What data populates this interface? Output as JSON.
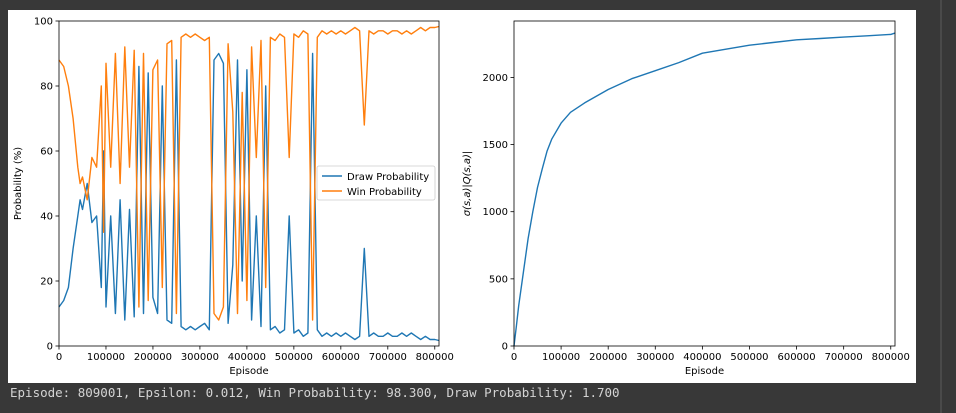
{
  "output": {
    "status_line": "Episode: 809001, Epsilon: 0.012, Win Probability: 98.300, Draw Probability: 1.700"
  },
  "colors": {
    "draw": "#1f77b4",
    "win": "#ff7f0e",
    "output_background": "#383838",
    "output_text": "#d4d4d4"
  },
  "chart_data": [
    {
      "type": "line",
      "title": "",
      "xlabel": "Episode",
      "ylabel": "Probability (%)",
      "xlim": [
        0,
        809001
      ],
      "ylim": [
        0,
        100
      ],
      "xticks": [
        0,
        100000,
        200000,
        300000,
        400000,
        500000,
        600000,
        700000,
        800000
      ],
      "xtick_labels": [
        "0",
        "100000",
        "200000",
        "300000",
        "400000",
        "500000",
        "600000",
        "700000",
        "800000"
      ],
      "yticks": [
        0,
        20,
        40,
        60,
        80,
        100
      ],
      "ytick_labels": [
        "0",
        "20",
        "40",
        "60",
        "80",
        "100"
      ],
      "legend": {
        "placement": "center-right"
      },
      "series": [
        {
          "name": "Draw Probability",
          "color": "#1f77b4",
          "x": [
            0,
            10000,
            20000,
            30000,
            40000,
            45000,
            50000,
            60000,
            70000,
            80000,
            90000,
            95000,
            100000,
            110000,
            120000,
            130000,
            140000,
            150000,
            160000,
            170000,
            180000,
            190000,
            200000,
            210000,
            220000,
            230000,
            240000,
            250000,
            260000,
            270000,
            280000,
            290000,
            300000,
            310000,
            320000,
            330000,
            340000,
            350000,
            360000,
            370000,
            380000,
            390000,
            400000,
            410000,
            420000,
            430000,
            440000,
            450000,
            460000,
            470000,
            480000,
            490000,
            500000,
            510000,
            520000,
            530000,
            540000,
            550000,
            560000,
            570000,
            580000,
            590000,
            600000,
            610000,
            620000,
            630000,
            640000,
            650000,
            660000,
            670000,
            680000,
            690000,
            700000,
            710000,
            720000,
            730000,
            740000,
            750000,
            760000,
            770000,
            780000,
            790000,
            800000,
            809001
          ],
          "y": [
            12,
            14,
            18,
            30,
            40,
            45,
            42,
            50,
            38,
            40,
            18,
            60,
            12,
            40,
            10,
            45,
            8,
            42,
            9,
            86,
            10,
            84,
            15,
            10,
            80,
            8,
            7,
            88,
            6,
            5,
            6,
            5,
            6,
            7,
            5,
            88,
            90,
            87,
            7,
            25,
            88,
            20,
            85,
            8,
            40,
            6,
            80,
            5,
            6,
            4,
            5,
            40,
            4,
            5,
            3,
            4,
            90,
            5,
            3,
            4,
            3,
            4,
            3,
            4,
            3,
            2,
            3,
            30,
            3,
            4,
            3,
            3,
            4,
            3,
            3,
            4,
            3,
            4,
            3,
            2,
            3,
            2,
            2,
            1.7
          ]
        },
        {
          "name": "Win Probability",
          "color": "#ff7f0e",
          "x": [
            0,
            10000,
            20000,
            30000,
            40000,
            45000,
            50000,
            60000,
            70000,
            80000,
            90000,
            95000,
            100000,
            110000,
            120000,
            130000,
            140000,
            150000,
            160000,
            170000,
            180000,
            190000,
            200000,
            210000,
            220000,
            230000,
            240000,
            250000,
            260000,
            270000,
            280000,
            290000,
            300000,
            310000,
            320000,
            330000,
            340000,
            350000,
            360000,
            370000,
            380000,
            390000,
            400000,
            410000,
            420000,
            430000,
            440000,
            450000,
            460000,
            470000,
            480000,
            490000,
            500000,
            510000,
            520000,
            530000,
            540000,
            550000,
            560000,
            570000,
            580000,
            590000,
            600000,
            610000,
            620000,
            630000,
            640000,
            650000,
            660000,
            670000,
            680000,
            690000,
            700000,
            710000,
            720000,
            730000,
            740000,
            750000,
            760000,
            770000,
            780000,
            790000,
            800000,
            809001
          ],
          "y": [
            88,
            86,
            80,
            70,
            55,
            50,
            52,
            45,
            58,
            55,
            80,
            35,
            87,
            55,
            90,
            50,
            92,
            55,
            91,
            12,
            90,
            14,
            85,
            88,
            18,
            93,
            94,
            10,
            95,
            96,
            95,
            96,
            95,
            94,
            95,
            10,
            8,
            12,
            93,
            72,
            10,
            78,
            14,
            92,
            58,
            94,
            18,
            95,
            94,
            96,
            95,
            58,
            96,
            95,
            97,
            96,
            8,
            95,
            97,
            96,
            97,
            96,
            97,
            96,
            97,
            98,
            97,
            68,
            97,
            96,
            97,
            97,
            96,
            97,
            97,
            96,
            97,
            96,
            97,
            98,
            97,
            98,
            98,
            98.3
          ]
        }
      ]
    },
    {
      "type": "line",
      "title": "",
      "xlabel": "Episode",
      "ylabel": "σ(s,a)|Q(s,a)|",
      "xlim": [
        0,
        809001
      ],
      "ylim": [
        0,
        2420
      ],
      "xticks": [
        0,
        100000,
        200000,
        300000,
        400000,
        500000,
        600000,
        700000,
        800000
      ],
      "xtick_labels": [
        "0",
        "100000",
        "200000",
        "300000",
        "400000",
        "500000",
        "600000",
        "700000",
        "800000"
      ],
      "yticks": [
        0,
        500,
        1000,
        1500,
        2000
      ],
      "ytick_labels": [
        "0",
        "500",
        "1000",
        "1500",
        "2000"
      ],
      "series": [
        {
          "color": "#1f77b4",
          "x": [
            0,
            5000,
            10000,
            20000,
            30000,
            40000,
            50000,
            60000,
            70000,
            80000,
            100000,
            120000,
            150000,
            200000,
            250000,
            300000,
            350000,
            400000,
            450000,
            500000,
            550000,
            600000,
            650000,
            700000,
            750000,
            800000,
            809001
          ],
          "y": [
            0,
            150,
            300,
            550,
            800,
            1000,
            1180,
            1320,
            1450,
            1540,
            1660,
            1740,
            1810,
            1910,
            1990,
            2050,
            2110,
            2180,
            2210,
            2240,
            2260,
            2280,
            2290,
            2300,
            2310,
            2320,
            2330
          ]
        }
      ]
    }
  ]
}
